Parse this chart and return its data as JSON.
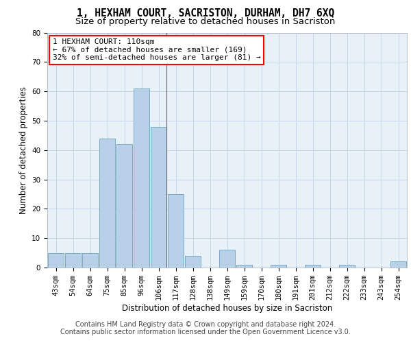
{
  "title": "1, HEXHAM COURT, SACRISTON, DURHAM, DH7 6XQ",
  "subtitle": "Size of property relative to detached houses in Sacriston",
  "xlabel": "Distribution of detached houses by size in Sacriston",
  "ylabel": "Number of detached properties",
  "categories": [
    "43sqm",
    "54sqm",
    "64sqm",
    "75sqm",
    "85sqm",
    "96sqm",
    "106sqm",
    "117sqm",
    "128sqm",
    "138sqm",
    "149sqm",
    "159sqm",
    "170sqm",
    "180sqm",
    "191sqm",
    "201sqm",
    "212sqm",
    "222sqm",
    "233sqm",
    "243sqm",
    "254sqm"
  ],
  "values": [
    5,
    5,
    5,
    44,
    42,
    61,
    48,
    25,
    4,
    0,
    6,
    1,
    0,
    1,
    0,
    1,
    0,
    1,
    0,
    0,
    2
  ],
  "bar_color": "#b8d0e8",
  "bar_edge_color": "#7aaac8",
  "annotation_text": "1 HEXHAM COURT: 110sqm\n← 67% of detached houses are smaller (169)\n32% of semi-detached houses are larger (81) →",
  "annotation_box_color": "white",
  "annotation_box_edge_color": "red",
  "ylim": [
    0,
    80
  ],
  "yticks": [
    0,
    10,
    20,
    30,
    40,
    50,
    60,
    70,
    80
  ],
  "grid_color": "#c8d8ea",
  "background_color": "#e8f0f8",
  "footer_line1": "Contains HM Land Registry data © Crown copyright and database right 2024.",
  "footer_line2": "Contains public sector information licensed under the Open Government Licence v3.0.",
  "title_fontsize": 10.5,
  "subtitle_fontsize": 9.5,
  "xlabel_fontsize": 8.5,
  "ylabel_fontsize": 8.5,
  "tick_fontsize": 7.5,
  "footer_fontsize": 7,
  "annotation_fontsize": 8
}
